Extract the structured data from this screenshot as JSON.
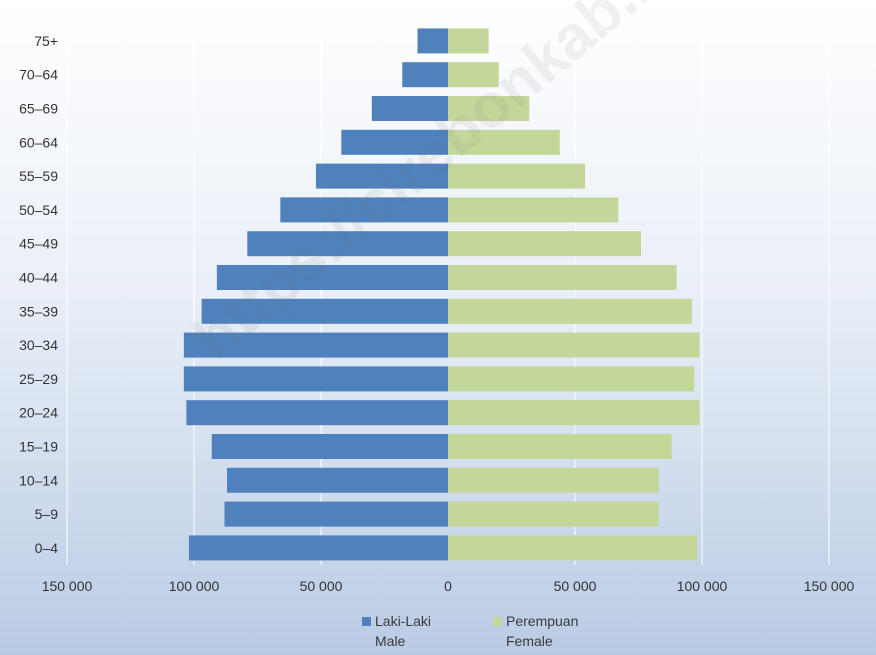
{
  "chart_data": {
    "type": "bar",
    "orientation": "horizontal-pyramid",
    "categories": [
      "75+",
      "70–64",
      "65–69",
      "60–64",
      "55–59",
      "50–54",
      "45–49",
      "40–44",
      "35–39",
      "30–34",
      "25–29",
      "20–24",
      "15–19",
      "10–14",
      "5–9",
      "0–4"
    ],
    "series": [
      {
        "name": "Laki-Laki / Male",
        "name_line1": "Laki-Laki",
        "name_line2": "Male",
        "color": "#4f81bd",
        "values": [
          12000,
          18000,
          30000,
          42000,
          52000,
          66000,
          79000,
          91000,
          97000,
          104000,
          104000,
          103000,
          93000,
          87000,
          88000,
          102000
        ]
      },
      {
        "name": "Perempuan / Female",
        "name_line1": "Perempuan",
        "name_line2": "Female",
        "color": "#c4d79b",
        "values": [
          16000,
          20000,
          32000,
          44000,
          54000,
          67000,
          76000,
          90000,
          96000,
          99000,
          97000,
          99000,
          88000,
          83000,
          83000,
          98000
        ]
      }
    ],
    "xlim": [
      -150000,
      150000
    ],
    "xticks": [
      -150000,
      -100000,
      -50000,
      0,
      50000,
      100000,
      150000
    ],
    "xtick_labels": [
      "150 000",
      "100 000",
      "50 000",
      "0",
      "50 000",
      "100 000",
      "150 000"
    ],
    "grid": "vertical",
    "legend_position": "bottom",
    "xlabel": "",
    "ylabel": ""
  },
  "watermark": "https://cirebonkab.bps.go.id"
}
